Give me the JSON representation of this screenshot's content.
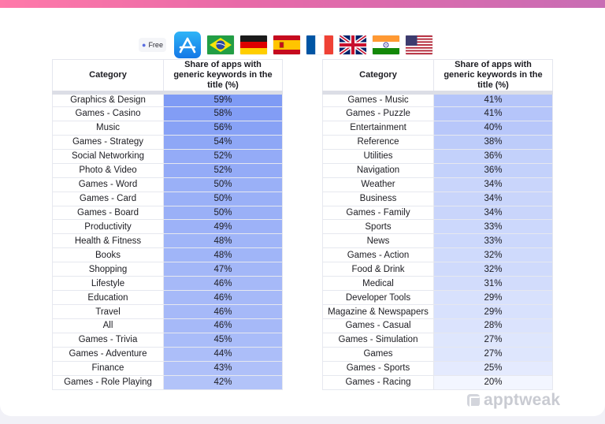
{
  "filters": {
    "pricing_tag": "Free",
    "tag_icon": "tag-icon",
    "store_icon": "app-store-icon",
    "flags": [
      "brazil",
      "germany",
      "spain",
      "france",
      "united-kingdom",
      "india",
      "united-states"
    ]
  },
  "colors": {
    "bar_strong": "#7f9bf5",
    "bar_weak": "#f3f6ff"
  },
  "left_table": {
    "header_category": "Category",
    "header_share": "Share of apps with generic keywords in the title (%)",
    "rows": [
      {
        "category": "Graphics & Design",
        "share": "59%",
        "value": 59
      },
      {
        "category": "Games - Casino",
        "share": "58%",
        "value": 58
      },
      {
        "category": "Music",
        "share": "56%",
        "value": 56
      },
      {
        "category": "Games - Strategy",
        "share": "54%",
        "value": 54
      },
      {
        "category": "Social Networking",
        "share": "52%",
        "value": 52
      },
      {
        "category": "Photo & Video",
        "share": "52%",
        "value": 52
      },
      {
        "category": "Games - Word",
        "share": "50%",
        "value": 50
      },
      {
        "category": "Games - Card",
        "share": "50%",
        "value": 50
      },
      {
        "category": "Games - Board",
        "share": "50%",
        "value": 50
      },
      {
        "category": "Productivity",
        "share": "49%",
        "value": 49
      },
      {
        "category": "Health & Fitness",
        "share": "48%",
        "value": 48
      },
      {
        "category": "Books",
        "share": "48%",
        "value": 48
      },
      {
        "category": "Shopping",
        "share": "47%",
        "value": 47
      },
      {
        "category": "Lifestyle",
        "share": "46%",
        "value": 46
      },
      {
        "category": "Education",
        "share": "46%",
        "value": 46
      },
      {
        "category": "Travel",
        "share": "46%",
        "value": 46
      },
      {
        "category": "All",
        "share": "46%",
        "value": 46
      },
      {
        "category": "Games - Trivia",
        "share": "45%",
        "value": 45
      },
      {
        "category": "Games - Adventure",
        "share": "44%",
        "value": 44
      },
      {
        "category": "Finance",
        "share": "43%",
        "value": 43
      },
      {
        "category": "Games - Role Playing",
        "share": "42%",
        "value": 42
      }
    ]
  },
  "right_table": {
    "header_category": "Category",
    "header_share": "Share of apps with generic keywords in the title (%)",
    "rows": [
      {
        "category": "Games - Music",
        "share": "41%",
        "value": 41
      },
      {
        "category": "Games - Puzzle",
        "share": "41%",
        "value": 41
      },
      {
        "category": "Entertainment",
        "share": "40%",
        "value": 40
      },
      {
        "category": "Reference",
        "share": "38%",
        "value": 38
      },
      {
        "category": "Utilities",
        "share": "36%",
        "value": 36
      },
      {
        "category": "Navigation",
        "share": "36%",
        "value": 36
      },
      {
        "category": "Weather",
        "share": "34%",
        "value": 34
      },
      {
        "category": "Business",
        "share": "34%",
        "value": 34
      },
      {
        "category": "Games - Family",
        "share": "34%",
        "value": 34
      },
      {
        "category": "Sports",
        "share": "33%",
        "value": 33
      },
      {
        "category": "News",
        "share": "33%",
        "value": 33
      },
      {
        "category": "Games - Action",
        "share": "32%",
        "value": 32
      },
      {
        "category": "Food & Drink",
        "share": "32%",
        "value": 32
      },
      {
        "category": "Medical",
        "share": "31%",
        "value": 31
      },
      {
        "category": "Developer Tools",
        "share": "29%",
        "value": 29
      },
      {
        "category": "Magazine & Newspapers",
        "share": "29%",
        "value": 29
      },
      {
        "category": "Games - Casual",
        "share": "28%",
        "value": 28
      },
      {
        "category": "Games - Simulation",
        "share": "27%",
        "value": 27
      },
      {
        "category": "Games",
        "share": "27%",
        "value": 27
      },
      {
        "category": "Games - Sports",
        "share": "25%",
        "value": 25
      },
      {
        "category": "Games - Racing",
        "share": "20%",
        "value": 20
      }
    ]
  },
  "watermark": {
    "brand": "apptweak",
    "logo_icon": "apptweak-logo-icon"
  }
}
